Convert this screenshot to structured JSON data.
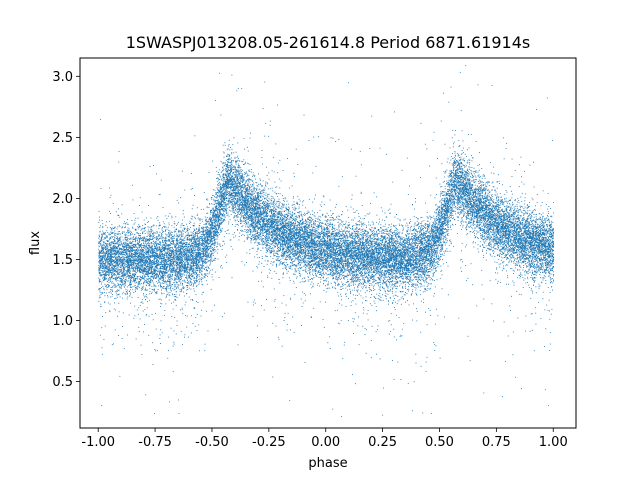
{
  "chart_data": {
    "type": "scatter",
    "title": "1SWASPJ013208.05-261614.8 Period 6871.61914s",
    "xlabel": "phase",
    "ylabel": "flux",
    "xlim": [
      -1.08,
      1.1
    ],
    "ylim": [
      0.12,
      3.15
    ],
    "x_ticks": [
      "-1.00",
      "-0.75",
      "-0.50",
      "-0.25",
      "0.00",
      "0.25",
      "0.50",
      "0.75",
      "1.00"
    ],
    "y_ticks": [
      "0.5",
      "1.0",
      "1.5",
      "2.0",
      "2.5",
      "3.0"
    ],
    "grid": false,
    "legend": "none",
    "marker_color": "#1f77b4",
    "series": [
      {
        "phase_range": [
          -1.0,
          1.0
        ],
        "baseline_flux": 1.5,
        "peaks": [
          {
            "phase": -0.43,
            "flux": 2.15
          },
          {
            "phase": 0.57,
            "flux": 2.15
          }
        ],
        "scatter_sd": 0.13,
        "points": 25000
      }
    ]
  }
}
